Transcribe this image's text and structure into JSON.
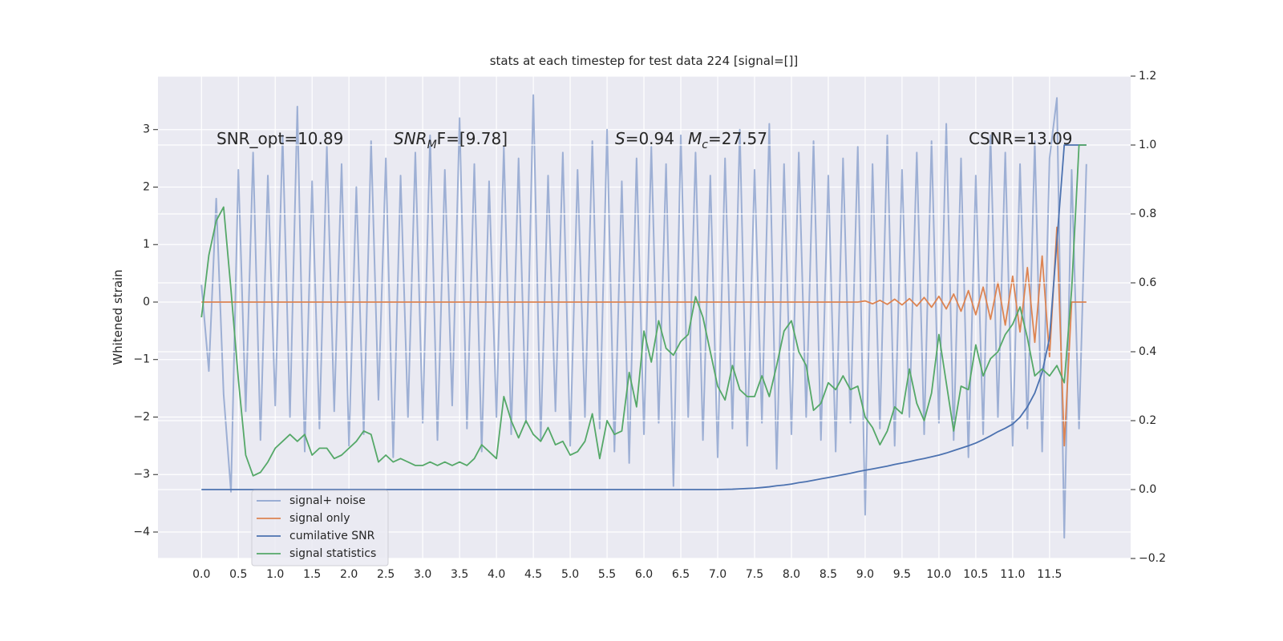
{
  "chart_data": {
    "type": "line",
    "title": "stats at each timestep for test data 224 [signal=[]]",
    "ylabel": "Whitened strain",
    "grid": true,
    "legend": "lower left",
    "background": "#eaeaf2",
    "annotations": [
      [
        {
          "text": "SNR_opt=10.89",
          "style": "normal"
        }
      ],
      [
        {
          "text": "SNR",
          "style": "italic"
        },
        {
          "text": "M",
          "style": "sub"
        },
        {
          "text": "F=[9.78]",
          "style": "normal"
        }
      ],
      [
        {
          "text": "S",
          "style": "italic"
        },
        {
          "text": "=0.94",
          "style": "normal"
        }
      ],
      [
        {
          "text": "M",
          "style": "italic"
        },
        {
          "text": "c",
          "style": "sub"
        },
        {
          "text": "=27.57",
          "style": "normal"
        }
      ],
      [
        {
          "text": "CSNR=13.09",
          "style": "normal"
        }
      ]
    ],
    "xlim": [
      -0.59,
      12.6
    ],
    "ylim": [
      -4.46,
      3.93
    ],
    "y2lim": [
      -0.2,
      1.2
    ],
    "xticks": [
      {
        "value": 0,
        "label": "0.0"
      },
      0.5,
      {
        "value": 1,
        "label": "1.0"
      },
      1.5,
      {
        "value": 2,
        "label": "2.0"
      },
      2.5,
      {
        "value": 3,
        "label": "3.0"
      },
      3.5,
      {
        "value": 4,
        "label": "4.0"
      },
      4.5,
      {
        "value": 5,
        "label": "5.0"
      },
      5.5,
      {
        "value": 6,
        "label": "6.0"
      },
      6.5,
      {
        "value": 7,
        "label": "7.0"
      },
      7.5,
      {
        "value": 8,
        "label": "8.0"
      },
      8.5,
      {
        "value": 9,
        "label": "9.0"
      },
      9.5,
      {
        "value": 10,
        "label": "10.0"
      },
      10.5,
      {
        "value": 11,
        "label": "11.0"
      },
      11.5
    ],
    "yticks": [
      {
        "value": -4,
        "label": "−4"
      },
      {
        "value": -3,
        "label": "−3"
      },
      {
        "value": -2,
        "label": "−2"
      },
      {
        "value": -1,
        "label": "−1"
      },
      0,
      1,
      2,
      3
    ],
    "y2ticks": [
      {
        "value": -0.2,
        "label": "−0.2"
      },
      {
        "value": 0,
        "label": "0.0"
      },
      0.2,
      0.4,
      0.6,
      0.8,
      {
        "value": 1,
        "label": "1.0"
      },
      1.2
    ],
    "x": [
      0,
      0.1,
      0.2,
      0.3,
      0.4,
      0.5,
      0.6,
      0.7,
      0.8,
      0.9,
      1,
      1.1,
      1.2,
      1.3,
      1.4,
      1.5,
      1.6,
      1.7,
      1.8,
      1.9,
      2,
      2.1,
      2.2,
      2.3,
      2.4,
      2.5,
      2.6,
      2.7,
      2.8,
      2.9,
      3,
      3.1,
      3.2,
      3.3,
      3.4,
      3.5,
      3.6,
      3.7,
      3.8,
      3.9,
      4,
      4.1,
      4.2,
      4.3,
      4.4,
      4.5,
      4.6,
      4.7,
      4.8,
      4.9,
      5,
      5.1,
      5.2,
      5.3,
      5.4,
      5.5,
      5.6,
      5.7,
      5.8,
      5.9,
      6,
      6.1,
      6.2,
      6.3,
      6.4,
      6.5,
      6.6,
      6.7,
      6.8,
      6.9,
      7,
      7.1,
      7.2,
      7.3,
      7.4,
      7.5,
      7.6,
      7.7,
      7.8,
      7.9,
      8,
      8.1,
      8.2,
      8.3,
      8.4,
      8.5,
      8.6,
      8.7,
      8.8,
      8.9,
      9,
      9.1,
      9.2,
      9.3,
      9.4,
      9.5,
      9.6,
      9.7,
      9.8,
      9.9,
      10,
      10.1,
      10.2,
      10.3,
      10.4,
      10.5,
      10.6,
      10.7,
      10.8,
      10.9,
      11,
      11.1,
      11.2,
      11.3,
      11.4,
      11.5,
      11.6,
      11.7,
      11.8,
      11.9,
      12
    ],
    "series": [
      {
        "name": "signal+ noise",
        "color": "#8fa4cf",
        "values": [
          0.3,
          -1.2,
          1.8,
          -1.6,
          -3.3,
          2.3,
          -1.9,
          2.6,
          -2.4,
          2.2,
          -1.8,
          2.9,
          -2.0,
          3.4,
          -2.6,
          2.1,
          -2.2,
          2.7,
          -1.9,
          2.4,
          -2.5,
          2.0,
          -2.3,
          2.8,
          -1.7,
          2.5,
          -2.7,
          2.2,
          -2.0,
          2.6,
          -2.1,
          2.9,
          -2.4,
          2.3,
          -1.8,
          3.2,
          -2.2,
          2.4,
          -2.6,
          2.1,
          -2.0,
          2.7,
          -2.3,
          2.5,
          -2.1,
          3.6,
          -2.4,
          2.2,
          -1.9,
          2.6,
          -2.5,
          2.3,
          -2.0,
          2.8,
          -2.2,
          3.0,
          -2.6,
          2.1,
          -2.8,
          2.5,
          -2.3,
          2.7,
          -2.1,
          2.4,
          -3.2,
          2.9,
          -2.0,
          2.6,
          -2.4,
          2.2,
          -2.7,
          2.5,
          -2.2,
          3.0,
          -2.5,
          2.3,
          -2.1,
          3.1,
          -2.9,
          2.4,
          -2.3,
          2.6,
          -2.0,
          2.8,
          -2.4,
          2.2,
          -2.6,
          2.5,
          -2.1,
          2.7,
          -3.7,
          2.4,
          -2.2,
          2.9,
          -2.5,
          2.3,
          -2.0,
          2.6,
          -2.3,
          2.8,
          -2.1,
          3.1,
          -2.4,
          2.5,
          -2.7,
          2.2,
          -2.3,
          2.9,
          -2.0,
          2.6,
          -2.5,
          2.4,
          -2.2,
          2.8,
          -2.6,
          2.5,
          3.55,
          -4.1,
          2.3,
          -2.2,
          2.4
        ]
      },
      {
        "name": "signal only",
        "color": "#dd8452",
        "values": [
          0,
          0,
          0,
          0,
          0,
          0,
          0,
          0,
          0,
          0,
          0,
          0,
          0,
          0,
          0,
          0,
          0,
          0,
          0,
          0,
          0,
          0,
          0,
          0,
          0,
          0,
          0,
          0,
          0,
          0,
          0,
          0,
          0,
          0,
          0,
          0,
          0,
          0,
          0,
          0,
          0,
          0,
          0,
          0,
          0,
          0,
          0,
          0,
          0,
          0,
          0,
          0,
          0,
          0,
          0,
          0,
          0,
          0,
          0,
          0,
          0,
          0,
          0,
          0,
          0,
          0,
          0,
          0,
          0,
          0,
          0,
          0,
          0,
          0,
          0,
          0,
          0,
          0,
          0,
          0,
          0,
          0,
          0,
          0,
          0,
          0,
          0,
          0,
          0,
          0,
          0.02,
          -0.03,
          0.03,
          -0.04,
          0.05,
          -0.05,
          0.06,
          -0.07,
          0.08,
          -0.09,
          0.1,
          -0.12,
          0.14,
          -0.16,
          0.2,
          -0.22,
          0.26,
          -0.3,
          0.34,
          -0.4,
          0.45,
          -0.52,
          0.6,
          -0.7,
          0.8,
          -0.95,
          1.3,
          -2.5,
          0,
          0,
          0
        ]
      },
      {
        "name": "cumilative SNR",
        "color": "#4c72b0",
        "axis": "y2",
        "values": [
          0,
          0,
          0,
          0,
          0,
          0,
          0,
          0,
          0,
          0,
          0,
          0,
          0,
          0,
          0,
          0,
          0,
          0,
          0,
          0,
          0,
          0,
          0,
          0,
          0,
          0,
          0,
          0,
          0,
          0,
          0,
          0,
          0,
          0,
          0,
          0,
          0,
          0,
          0,
          0,
          0,
          0,
          0,
          0,
          0,
          0,
          0,
          0,
          0,
          0,
          0,
          0,
          0,
          0,
          0,
          0,
          0,
          0,
          0,
          0,
          0,
          0,
          0,
          0,
          0,
          0,
          0,
          0,
          0,
          0,
          0,
          0.0005,
          0.001,
          0.002,
          0.003,
          0.004,
          0.006,
          0.008,
          0.011,
          0.013,
          0.016,
          0.02,
          0.023,
          0.027,
          0.031,
          0.035,
          0.039,
          0.043,
          0.047,
          0.052,
          0.056,
          0.06,
          0.064,
          0.068,
          0.073,
          0.077,
          0.081,
          0.086,
          0.09,
          0.095,
          0.1,
          0.106,
          0.113,
          0.12,
          0.127,
          0.135,
          0.145,
          0.156,
          0.168,
          0.178,
          0.19,
          0.21,
          0.24,
          0.28,
          0.34,
          0.44,
          0.72,
          1.0,
          1.0,
          1.0,
          1.0
        ]
      },
      {
        "name": "signal statistics",
        "color": "#55a868",
        "axis": "y2",
        "values": [
          0.5,
          0.68,
          0.78,
          0.82,
          0.58,
          0.32,
          0.1,
          0.04,
          0.05,
          0.08,
          0.12,
          0.14,
          0.16,
          0.14,
          0.16,
          0.1,
          0.12,
          0.12,
          0.09,
          0.1,
          0.12,
          0.14,
          0.17,
          0.16,
          0.08,
          0.1,
          0.08,
          0.09,
          0.08,
          0.07,
          0.07,
          0.08,
          0.07,
          0.08,
          0.07,
          0.08,
          0.07,
          0.09,
          0.13,
          0.11,
          0.09,
          0.27,
          0.2,
          0.15,
          0.2,
          0.16,
          0.14,
          0.18,
          0.13,
          0.14,
          0.1,
          0.11,
          0.14,
          0.22,
          0.09,
          0.2,
          0.16,
          0.17,
          0.34,
          0.24,
          0.46,
          0.37,
          0.49,
          0.41,
          0.39,
          0.43,
          0.45,
          0.56,
          0.5,
          0.4,
          0.3,
          0.26,
          0.36,
          0.29,
          0.27,
          0.27,
          0.33,
          0.27,
          0.36,
          0.46,
          0.49,
          0.4,
          0.36,
          0.23,
          0.25,
          0.31,
          0.29,
          0.33,
          0.29,
          0.3,
          0.21,
          0.18,
          0.13,
          0.17,
          0.24,
          0.22,
          0.35,
          0.25,
          0.2,
          0.28,
          0.45,
          0.31,
          0.17,
          0.3,
          0.29,
          0.42,
          0.33,
          0.38,
          0.4,
          0.45,
          0.48,
          0.53,
          0.44,
          0.33,
          0.35,
          0.33,
          0.36,
          0.31,
          0.58,
          1.0,
          1.0
        ]
      }
    ]
  }
}
